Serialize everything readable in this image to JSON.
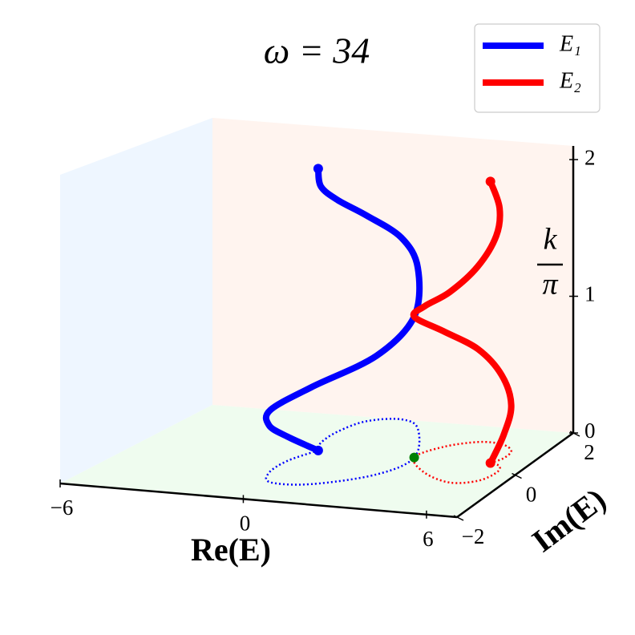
{
  "chart_data": {
    "type": "line3d",
    "title": "ω = 34",
    "xlabel": "Re(E)",
    "ylabel": "Im(E)",
    "zlabel": {
      "numerator": "k",
      "denominator": "π"
    },
    "xlim": [
      -6,
      7
    ],
    "ylim": [
      -2,
      2
    ],
    "zlim": [
      0,
      2.1
    ],
    "xticks": [
      {
        "value": -6,
        "label": "−6"
      },
      0,
      6
    ],
    "yticks": [
      {
        "value": -2,
        "label": "−2"
      },
      0,
      2
    ],
    "zticks": [
      0,
      1,
      2
    ],
    "legend": "upper right",
    "pane_colors": {
      "x": "#eef6ff",
      "y": "#fff4ef",
      "z": "#effcef"
    },
    "series": [
      {
        "name": "E₁",
        "color": "#0000ff",
        "x": [
          -0.19,
          -0.59,
          -0.54,
          -0.02,
          1.27,
          2.75,
          3.1,
          1.8,
          0.79,
          -0.22,
          -0.57,
          -0.51,
          -0.19
        ],
        "y": [
          0.37,
          -0.19,
          -0.77,
          -1.18,
          -1.11,
          -0.46,
          0.4,
          1.66,
          2.01,
          1.81,
          1.26,
          0.72,
          0.37
        ],
        "z": [
          0,
          0.17,
          0.33,
          0.5,
          0.67,
          0.83,
          1,
          1.17,
          1.33,
          1.5,
          1.67,
          1.83,
          2
        ]
      },
      {
        "name": "E₂",
        "color": "#ff0000",
        "x": [
          5.71,
          5.91,
          5.81,
          5.2,
          4.36,
          3.5,
          3.1,
          4.13,
          5.33,
          6.1,
          6.32,
          6.13,
          5.71
        ],
        "y": [
          0.43,
          0.69,
          1.03,
          1.28,
          1.29,
          0.96,
          0.4,
          -0.22,
          -0.55,
          -0.38,
          0.03,
          0.33,
          0.43
        ],
        "z": [
          0,
          0.17,
          0.33,
          0.5,
          0.67,
          0.83,
          1,
          1.17,
          1.33,
          1.5,
          1.67,
          1.83,
          2
        ]
      }
    ],
    "points": [
      {
        "x": 3.1,
        "y": 0.4,
        "z": 0,
        "color": "#008000"
      }
    ]
  }
}
